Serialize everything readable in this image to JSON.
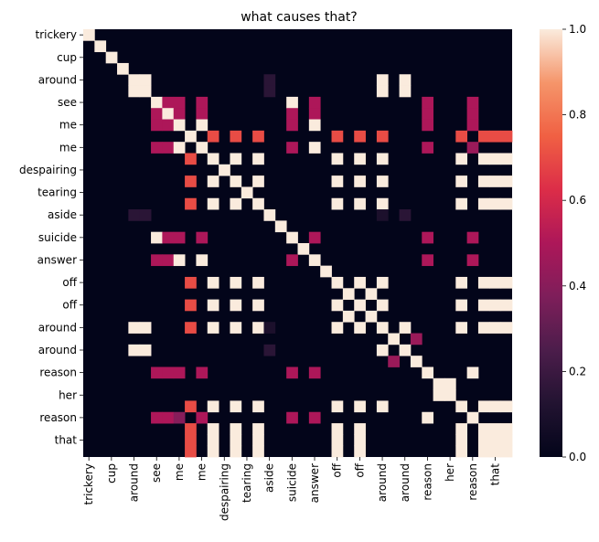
{
  "chart_data": {
    "type": "heatmap",
    "title": "what causes that?",
    "xlabels": [
      "trickery",
      "cup",
      "around",
      "see",
      "me",
      "me",
      "despairing",
      "tearing",
      "aside",
      "suicide",
      "answer",
      "off",
      "off",
      "around",
      "around",
      "reason",
      "her",
      "reason",
      "that"
    ],
    "ylabels": [
      "trickery",
      "cup",
      "around",
      "see",
      "me",
      "me",
      "despairing",
      "tearing",
      "aside",
      "suicide",
      "answer",
      "off",
      "off",
      "around",
      "around",
      "reason",
      "her",
      "reason",
      "that"
    ],
    "tokens": [
      "trickery",
      "_",
      "cup",
      "_",
      "around",
      "_",
      "see",
      "_",
      "me",
      "_",
      "me",
      "_",
      "despairing",
      "_",
      "tearing",
      "_",
      "aside",
      "_",
      "suicide",
      "_",
      "answer",
      "_",
      "off",
      "_",
      "off",
      "_",
      "around",
      "_",
      "around",
      "_",
      "reason",
      "_",
      "her",
      "_",
      "reason",
      "_",
      "that",
      "_"
    ],
    "vmin": 0,
    "vmax": 1,
    "colorbar_ticks": [
      "0.0",
      "0.2",
      "0.4",
      "0.6",
      "0.8",
      "1.0"
    ],
    "colormap": "rocket",
    "matrix": [
      [
        1,
        0,
        0,
        0,
        0,
        0,
        0,
        0,
        0,
        0,
        0,
        0,
        0,
        0,
        0,
        0,
        0,
        0,
        0,
        0,
        0,
        0,
        0,
        0,
        0,
        0,
        0,
        0,
        0,
        0,
        0,
        0,
        0,
        0,
        0,
        0,
        0,
        0
      ],
      [
        0,
        1,
        0,
        0,
        0,
        0,
        0,
        0,
        0,
        0,
        0,
        0,
        0,
        0,
        0,
        0,
        0,
        0,
        0,
        0,
        0,
        0,
        0,
        0,
        0,
        0,
        0,
        0,
        0,
        0,
        0,
        0,
        0,
        0,
        0,
        0,
        0,
        0
      ],
      [
        0,
        0,
        1,
        0,
        0,
        0,
        0,
        0,
        0,
        0,
        0,
        0,
        0,
        0,
        0,
        0,
        0,
        0,
        0,
        0,
        0,
        0,
        0,
        0,
        0,
        0,
        0,
        0,
        0,
        0,
        0,
        0,
        0,
        0,
        0,
        0,
        0,
        0
      ],
      [
        0,
        0,
        0,
        1,
        0,
        0,
        0,
        0,
        0,
        0,
        0,
        0,
        0,
        0,
        0,
        0,
        0,
        0,
        0,
        0,
        0,
        0,
        0,
        0,
        0,
        0,
        0,
        0,
        0,
        0,
        0,
        0,
        0,
        0,
        0,
        0,
        0,
        0
      ],
      [
        0,
        0,
        0,
        0,
        1,
        1,
        0,
        0,
        0,
        0,
        0,
        0,
        0,
        0,
        0,
        0,
        0.15,
        0,
        0,
        0,
        0,
        0,
        0,
        0,
        0,
        0,
        1,
        0,
        1,
        0,
        0,
        0,
        0,
        0,
        0,
        0,
        0,
        0
      ],
      [
        0,
        0,
        0,
        0,
        1,
        1,
        0,
        0,
        0,
        0,
        0,
        0,
        0,
        0,
        0,
        0,
        0.15,
        0,
        0,
        0,
        0,
        0,
        0,
        0,
        0,
        0,
        1,
        0,
        1,
        0,
        0,
        0,
        0,
        0,
        0,
        0,
        0,
        0
      ],
      [
        0,
        0,
        0,
        0,
        0,
        0,
        1,
        0.5,
        0.5,
        0,
        0.5,
        0,
        0,
        0,
        0,
        0,
        0,
        0,
        1,
        0,
        0.5,
        0,
        0,
        0,
        0,
        0,
        0,
        0,
        0,
        0,
        0.5,
        0,
        0,
        0,
        0.5,
        0,
        0,
        0
      ],
      [
        0,
        0,
        0,
        0,
        0,
        0,
        0.5,
        1,
        0.5,
        0,
        0.5,
        0,
        0,
        0,
        0,
        0,
        0,
        0,
        0.5,
        0,
        0.5,
        0,
        0,
        0,
        0,
        0,
        0,
        0,
        0,
        0,
        0.5,
        0,
        0,
        0,
        0.5,
        0,
        0,
        0
      ],
      [
        0,
        0,
        0,
        0,
        0,
        0,
        0.5,
        0.5,
        1,
        0,
        1,
        0,
        0,
        0,
        0,
        0,
        0,
        0,
        0.5,
        0,
        1,
        0,
        0,
        0,
        0,
        0,
        0,
        0,
        0,
        0,
        0.5,
        0,
        0,
        0,
        0.5,
        0,
        0,
        0
      ],
      [
        0,
        0,
        0,
        0,
        0,
        0,
        0,
        0,
        0,
        1,
        0,
        0.7,
        0,
        0.7,
        0,
        0.7,
        0,
        0,
        0,
        0,
        0,
        0,
        0.7,
        0,
        0.7,
        0,
        0.7,
        0,
        0,
        0,
        0,
        0,
        0,
        0.7,
        0,
        0.7,
        0.7,
        0.7
      ],
      [
        0,
        0,
        0,
        0,
        0,
        0,
        0.5,
        0.5,
        1,
        0,
        1,
        0,
        0,
        0,
        0,
        0,
        0,
        0,
        0.5,
        0,
        1,
        0,
        0,
        0,
        0,
        0,
        0,
        0,
        0,
        0,
        0.5,
        0,
        0,
        0,
        0.45,
        0,
        0,
        0
      ],
      [
        0,
        0,
        0,
        0,
        0,
        0,
        0,
        0,
        0,
        0.7,
        0,
        1,
        0,
        1,
        0,
        1,
        0,
        0,
        0,
        0,
        0,
        0,
        1,
        0,
        1,
        0,
        1,
        0,
        0,
        0,
        0,
        0,
        0,
        1,
        0,
        1,
        1,
        1
      ],
      [
        0,
        0,
        0,
        0,
        0,
        0,
        0,
        0,
        0,
        0,
        0,
        0,
        1,
        0,
        0,
        0,
        0,
        0,
        0,
        0,
        0,
        0,
        0,
        0,
        0,
        0,
        0,
        0,
        0,
        0,
        0,
        0,
        0,
        0,
        0,
        0,
        0,
        0
      ],
      [
        0,
        0,
        0,
        0,
        0,
        0,
        0,
        0,
        0,
        0.7,
        0,
        1,
        0,
        1,
        0,
        1,
        0,
        0,
        0,
        0,
        0,
        0,
        1,
        0,
        1,
        0,
        1,
        0,
        0,
        0,
        0,
        0,
        0,
        1,
        0,
        1,
        1,
        1
      ],
      [
        0,
        0,
        0,
        0,
        0,
        0,
        0,
        0,
        0,
        0,
        0,
        0,
        0,
        0,
        1,
        0,
        0,
        0,
        0,
        0,
        0,
        0,
        0,
        0,
        0,
        0,
        0,
        0,
        0,
        0,
        0,
        0,
        0,
        0,
        0,
        0,
        0,
        0
      ],
      [
        0,
        0,
        0,
        0,
        0,
        0,
        0,
        0,
        0,
        0.7,
        0,
        1,
        0,
        1,
        0,
        1,
        0,
        0,
        0,
        0,
        0,
        0,
        1,
        0,
        1,
        0,
        1,
        0,
        0,
        0,
        0,
        0,
        0,
        1,
        0,
        1,
        1,
        1
      ],
      [
        0,
        0,
        0,
        0,
        0.15,
        0.15,
        0,
        0,
        0,
        0,
        0,
        0,
        0,
        0,
        0,
        0,
        1,
        0,
        0,
        0,
        0,
        0,
        0,
        0,
        0,
        0,
        0.1,
        0,
        0.15,
        0,
        0,
        0,
        0,
        0,
        0,
        0,
        0,
        0
      ],
      [
        0,
        0,
        0,
        0,
        0,
        0,
        0,
        0,
        0,
        0,
        0,
        0,
        0,
        0,
        0,
        0,
        0,
        1,
        0,
        0,
        0,
        0,
        0,
        0,
        0,
        0,
        0,
        0,
        0,
        0,
        0,
        0,
        0,
        0,
        0,
        0,
        0,
        0
      ],
      [
        0,
        0,
        0,
        0,
        0,
        0,
        1,
        0.5,
        0.5,
        0,
        0.5,
        0,
        0,
        0,
        0,
        0,
        0,
        0,
        1,
        0,
        0.5,
        0,
        0,
        0,
        0,
        0,
        0,
        0,
        0,
        0,
        0.5,
        0,
        0,
        0,
        0.5,
        0,
        0,
        0
      ],
      [
        0,
        0,
        0,
        0,
        0,
        0,
        0,
        0,
        0,
        0,
        0,
        0,
        0,
        0,
        0,
        0,
        0,
        0,
        0,
        1,
        0,
        0,
        0,
        0,
        0,
        0,
        0,
        0,
        0,
        0,
        0,
        0,
        0,
        0,
        0,
        0,
        0,
        0
      ],
      [
        0,
        0,
        0,
        0,
        0,
        0,
        0.5,
        0.5,
        1,
        0,
        1,
        0,
        0,
        0,
        0,
        0,
        0,
        0,
        0.5,
        0,
        1,
        0,
        0,
        0,
        0,
        0,
        0,
        0,
        0,
        0,
        0.5,
        0,
        0,
        0,
        0.5,
        0,
        0,
        0
      ],
      [
        0,
        0,
        0,
        0,
        0,
        0,
        0,
        0,
        0,
        0,
        0,
        0,
        0,
        0,
        0,
        0,
        0,
        0,
        0,
        0,
        0,
        1,
        0,
        0,
        0,
        0,
        0,
        0,
        0,
        0,
        0,
        0,
        0,
        0,
        0,
        0,
        0,
        0
      ],
      [
        0,
        0,
        0,
        0,
        0,
        0,
        0,
        0,
        0,
        0.7,
        0,
        1,
        0,
        1,
        0,
        1,
        0,
        0,
        0,
        0,
        0,
        0,
        1,
        0,
        1,
        0,
        1,
        0,
        0,
        0,
        0,
        0,
        0,
        1,
        0,
        1,
        1,
        1
      ],
      [
        0,
        0,
        0,
        0,
        0,
        0,
        0,
        0,
        0,
        0,
        0,
        0,
        0,
        0,
        0,
        0,
        0,
        0,
        0,
        0,
        0,
        0,
        0,
        1,
        0,
        1,
        0,
        0,
        0,
        0,
        0,
        0,
        0,
        0,
        0,
        0,
        0,
        0
      ],
      [
        0,
        0,
        0,
        0,
        0,
        0,
        0,
        0,
        0,
        0.7,
        0,
        1,
        0,
        1,
        0,
        1,
        0,
        0,
        0,
        0,
        0,
        0,
        1,
        0,
        1,
        0,
        1,
        0,
        0,
        0,
        0,
        0,
        0,
        1,
        0,
        1,
        1,
        1
      ],
      [
        0,
        0,
        0,
        0,
        0,
        0,
        0,
        0,
        0,
        0,
        0,
        0,
        0,
        0,
        0,
        0,
        0,
        0,
        0,
        0,
        0,
        0,
        0,
        1,
        0,
        1,
        0,
        0,
        0,
        0,
        0,
        0,
        0,
        0,
        0,
        0,
        0,
        0
      ],
      [
        0,
        0,
        0,
        0,
        1,
        1,
        0,
        0,
        0,
        0.7,
        0,
        1,
        0,
        1,
        0,
        1,
        0.1,
        0,
        0,
        0,
        0,
        0,
        1,
        0,
        1,
        0,
        1,
        0,
        1,
        0,
        0,
        0,
        0,
        1,
        0,
        1,
        1,
        1
      ],
      [
        0,
        0,
        0,
        0,
        0,
        0,
        0,
        0,
        0,
        0,
        0,
        0,
        0,
        0,
        0,
        0,
        0,
        0,
        0,
        0,
        0,
        0,
        0,
        0,
        0,
        0,
        0,
        1,
        0,
        0.45,
        0,
        0,
        0,
        0,
        0,
        0,
        0,
        0
      ],
      [
        0,
        0,
        0,
        0,
        1,
        1,
        0,
        0,
        0,
        0,
        0,
        0,
        0,
        0,
        0,
        0,
        0.15,
        0,
        0,
        0,
        0,
        0,
        0,
        0,
        0,
        0,
        1,
        0,
        1,
        0,
        0,
        0,
        0,
        0,
        0,
        0,
        0,
        0
      ],
      [
        0,
        0,
        0,
        0,
        0,
        0,
        0,
        0,
        0,
        0,
        0,
        0,
        0,
        0,
        0,
        0,
        0,
        0,
        0,
        0,
        0,
        0,
        0,
        0,
        0,
        0,
        0,
        0.45,
        0,
        1,
        0,
        0,
        0,
        0,
        0,
        0,
        0,
        0
      ],
      [
        0,
        0,
        0,
        0,
        0,
        0,
        0.5,
        0.5,
        0.5,
        0,
        0.5,
        0,
        0,
        0,
        0,
        0,
        0,
        0,
        0.5,
        0,
        0.5,
        0,
        0,
        0,
        0,
        0,
        0,
        0,
        0,
        0,
        1,
        0,
        0,
        0,
        1,
        0,
        0,
        0
      ],
      [
        0,
        0,
        0,
        0,
        0,
        0,
        0,
        0,
        0,
        0,
        0,
        0,
        0,
        0,
        0,
        0,
        0,
        0,
        0,
        0,
        0,
        0,
        0,
        0,
        0,
        0,
        0,
        0,
        0,
        0,
        0,
        1,
        1,
        0,
        0,
        0,
        0,
        0
      ],
      [
        0,
        0,
        0,
        0,
        0,
        0,
        0,
        0,
        0,
        0,
        0,
        0,
        0,
        0,
        0,
        0,
        0,
        0,
        0,
        0,
        0,
        0,
        0,
        0,
        0,
        0,
        0,
        0,
        0,
        0,
        0,
        1,
        1,
        0,
        0,
        0,
        0,
        0
      ],
      [
        0,
        0,
        0,
        0,
        0,
        0,
        0,
        0,
        0,
        0.7,
        0,
        1,
        0,
        1,
        0,
        1,
        0,
        0,
        0,
        0,
        0,
        0,
        1,
        0,
        1,
        0,
        1,
        0,
        0,
        0,
        0,
        0,
        0,
        1,
        0,
        1,
        1,
        1
      ],
      [
        0,
        0,
        0,
        0,
        0,
        0,
        0.5,
        0.5,
        0.4,
        0,
        0.5,
        0,
        0,
        0,
        0,
        0,
        0,
        0,
        0.5,
        0,
        0.5,
        0,
        0,
        0,
        0,
        0,
        0,
        0,
        0,
        0,
        1,
        0,
        0,
        0,
        1,
        0,
        0,
        0
      ],
      [
        0,
        0,
        0,
        0,
        0,
        0,
        0,
        0,
        0,
        0.7,
        0,
        1,
        0,
        1,
        0,
        1,
        0,
        0,
        0,
        0,
        0,
        0,
        1,
        0,
        1,
        0,
        0,
        0,
        0,
        0,
        0,
        0,
        0,
        1,
        0,
        1,
        1,
        1
      ],
      [
        0,
        0,
        0,
        0,
        0,
        0,
        0,
        0,
        0,
        0.7,
        0,
        1,
        0,
        1,
        0,
        1,
        0,
        0,
        0,
        0,
        0,
        0,
        1,
        0,
        1,
        0,
        0,
        0,
        0,
        0,
        0,
        0,
        0,
        1,
        0,
        1,
        1,
        1
      ],
      [
        0,
        0,
        0,
        0,
        0,
        0,
        0,
        0,
        0,
        0.7,
        0,
        1,
        0,
        1,
        0,
        1,
        0,
        0,
        0,
        0,
        0,
        0,
        1,
        0,
        1,
        0,
        0,
        0,
        0,
        0,
        0,
        0,
        0,
        1,
        0,
        1,
        1,
        1
      ]
    ]
  }
}
